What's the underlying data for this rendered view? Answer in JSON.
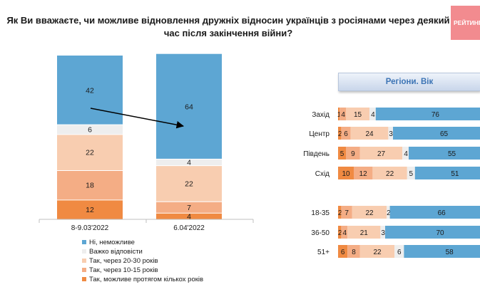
{
  "title": "Як Ви вважаєте, чи можливе відновлення дружніх відносин українців з росіянами через деякий час після закінчення війни?",
  "logo": {
    "text": "РЕЙТИНГ"
  },
  "colors": {
    "no": "#5da6d3",
    "hard": "#eeeeee",
    "y20": "#f8cdb0",
    "y10": "#f4ad85",
    "few": "#f08a42",
    "arrow": "#000000"
  },
  "chart_data": [
    {
      "type": "bar",
      "stacked": true,
      "title": "",
      "categories": [
        "8-9.03'2022",
        "6.04'2022"
      ],
      "series": [
        {
          "name": "Так, можливе протягом кількох років",
          "values": [
            12,
            4
          ]
        },
        {
          "name": "Так, через 10-15 років",
          "values": [
            18,
            7
          ]
        },
        {
          "name": "Так, через 20-30 років",
          "values": [
            22,
            22
          ]
        },
        {
          "name": "Важко відповісти",
          "values": [
            6,
            4
          ]
        },
        {
          "name": "Ні, неможливе",
          "values": [
            42,
            64
          ]
        }
      ],
      "legend_order": [
        "Ні, неможливе",
        "Важко відповісти",
        "Так, через 20-30 років",
        "Так, через 10-15 років",
        "Так, можливе протягом кількох років"
      ],
      "ylim": [
        0,
        100
      ]
    },
    {
      "type": "bar",
      "orientation": "horizontal",
      "stacked": true,
      "title": "Регіони. Вік",
      "categories": [
        "Захід",
        "Центр",
        "Південь",
        "Схід",
        "18-35",
        "36-50",
        "51+"
      ],
      "series": [
        {
          "name": "Так, можливе протягом кількох років",
          "values": [
            1,
            2,
            5,
            10,
            2,
            2,
            6
          ]
        },
        {
          "name": "Так, через 10-15 років",
          "values": [
            4,
            6,
            9,
            12,
            7,
            4,
            8
          ]
        },
        {
          "name": "Так, через 20-30 років",
          "values": [
            15,
            24,
            27,
            22,
            22,
            21,
            22
          ]
        },
        {
          "name": "Важко відповісти",
          "values": [
            4,
            3,
            4,
            5,
            2,
            3,
            6
          ]
        },
        {
          "name": "Ні, неможливе",
          "values": [
            76,
            65,
            55,
            51,
            66,
            70,
            58
          ]
        }
      ]
    }
  ]
}
